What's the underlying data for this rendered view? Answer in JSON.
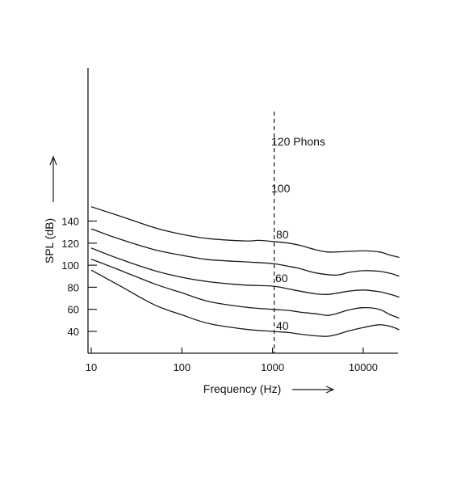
{
  "chart_data": {
    "type": "line",
    "title": "",
    "xlabel": "Frequency (Hz)",
    "ylabel": "SPL (dB)",
    "x_scale": "log",
    "xlim": [
      10,
      25000
    ],
    "ylim": [
      30,
      150
    ],
    "x_ticks": [
      10,
      100,
      1000,
      10000
    ],
    "x_tick_labels": [
      "10",
      "100",
      "1000",
      "10000"
    ],
    "y_ticks": [
      40,
      60,
      80,
      100,
      120,
      140
    ],
    "y_tick_labels": [
      "40",
      "60",
      "80",
      "100",
      "120",
      "140"
    ],
    "grid": false,
    "reference_line": {
      "x": 1000,
      "style": "dashed"
    },
    "series": [
      {
        "name": "120 Phons",
        "points": [
          [
            10,
            153
          ],
          [
            20,
            145
          ],
          [
            50,
            134
          ],
          [
            100,
            128
          ],
          [
            200,
            124
          ],
          [
            500,
            122
          ],
          [
            700,
            122.5
          ],
          [
            1000,
            121.5
          ],
          [
            1500,
            120
          ],
          [
            2000,
            118
          ],
          [
            3000,
            114
          ],
          [
            4000,
            112
          ],
          [
            5000,
            112
          ],
          [
            7000,
            112.5
          ],
          [
            10000,
            113
          ],
          [
            15000,
            112
          ],
          [
            20000,
            109
          ],
          [
            25000,
            107
          ]
        ]
      },
      {
        "name": "100",
        "points": [
          [
            10,
            133
          ],
          [
            20,
            124
          ],
          [
            50,
            114
          ],
          [
            100,
            109
          ],
          [
            200,
            105
          ],
          [
            500,
            103
          ],
          [
            1000,
            101.5
          ],
          [
            1500,
            99
          ],
          [
            2000,
            97
          ],
          [
            3000,
            93
          ],
          [
            5000,
            91
          ],
          [
            7000,
            93.5
          ],
          [
            10000,
            95
          ],
          [
            15000,
            94.5
          ],
          [
            20000,
            92.5
          ],
          [
            25000,
            90
          ]
        ]
      },
      {
        "name": "80",
        "points": [
          [
            10,
            115.5
          ],
          [
            20,
            106
          ],
          [
            50,
            95
          ],
          [
            100,
            89
          ],
          [
            200,
            85
          ],
          [
            500,
            82
          ],
          [
            1000,
            81
          ],
          [
            1500,
            78.5
          ],
          [
            2000,
            76.5
          ],
          [
            3000,
            74
          ],
          [
            4000,
            73.5
          ],
          [
            5000,
            74.5
          ],
          [
            7000,
            76.5
          ],
          [
            10000,
            77.5
          ],
          [
            15000,
            76
          ],
          [
            20000,
            73.5
          ],
          [
            25000,
            71
          ]
        ]
      },
      {
        "name": "60",
        "points": [
          [
            10,
            105.5
          ],
          [
            20,
            96
          ],
          [
            50,
            83
          ],
          [
            100,
            75
          ],
          [
            200,
            67
          ],
          [
            500,
            62
          ],
          [
            1000,
            60
          ],
          [
            1500,
            59
          ],
          [
            2000,
            57.5
          ],
          [
            3000,
            56
          ],
          [
            4000,
            54.5
          ],
          [
            5000,
            56
          ],
          [
            7000,
            59.5
          ],
          [
            10000,
            61.5
          ],
          [
            15000,
            60
          ],
          [
            20000,
            55
          ],
          [
            25000,
            52
          ]
        ]
      },
      {
        "name": "40",
        "points": [
          [
            10,
            95.5
          ],
          [
            20,
            82
          ],
          [
            50,
            64
          ],
          [
            100,
            55
          ],
          [
            200,
            47
          ],
          [
            500,
            42
          ],
          [
            1000,
            40
          ],
          [
            1500,
            39
          ],
          [
            2000,
            37.5
          ],
          [
            3000,
            36
          ],
          [
            4000,
            35.5
          ],
          [
            5000,
            37
          ],
          [
            7000,
            40.5
          ],
          [
            10000,
            43.5
          ],
          [
            15000,
            46
          ],
          [
            20000,
            44.5
          ],
          [
            25000,
            41.5
          ]
        ]
      }
    ]
  }
}
